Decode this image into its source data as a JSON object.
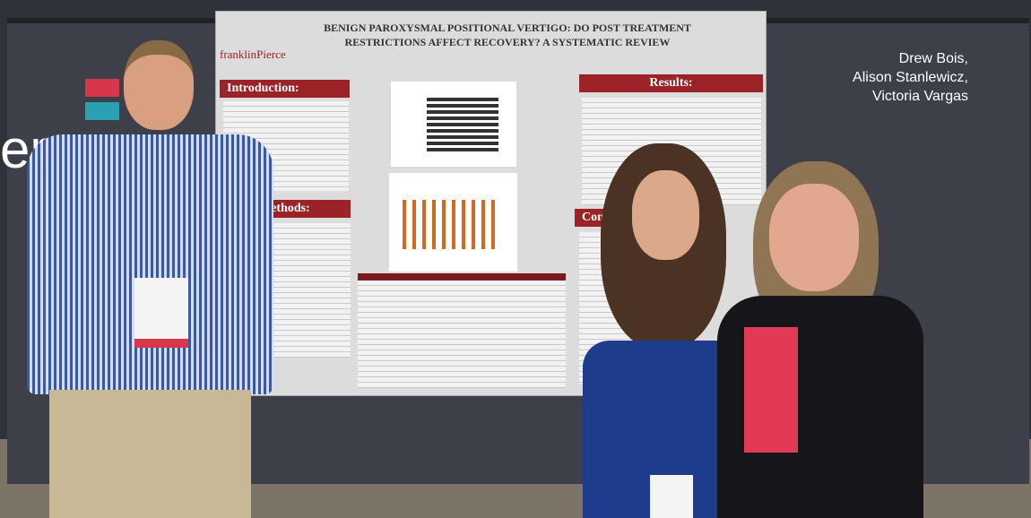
{
  "overlay_text": "er",
  "caption": {
    "names": [
      "Drew Bois,",
      "Alison Stanlewicz,",
      "Victoria Vargas"
    ]
  },
  "poster": {
    "logo": "franklinPierce",
    "title": "BENIGN PAROXYSMAL POSITIONAL VERTIGO: DO POST TREATMENT RESTRICTIONS AFFECT RECOVERY? A SYSTEMATIC REVIEW",
    "sections": {
      "introduction": "Introduction:",
      "methods": "Methods:",
      "results": "Results:",
      "conclusions": "Conclusions"
    }
  }
}
